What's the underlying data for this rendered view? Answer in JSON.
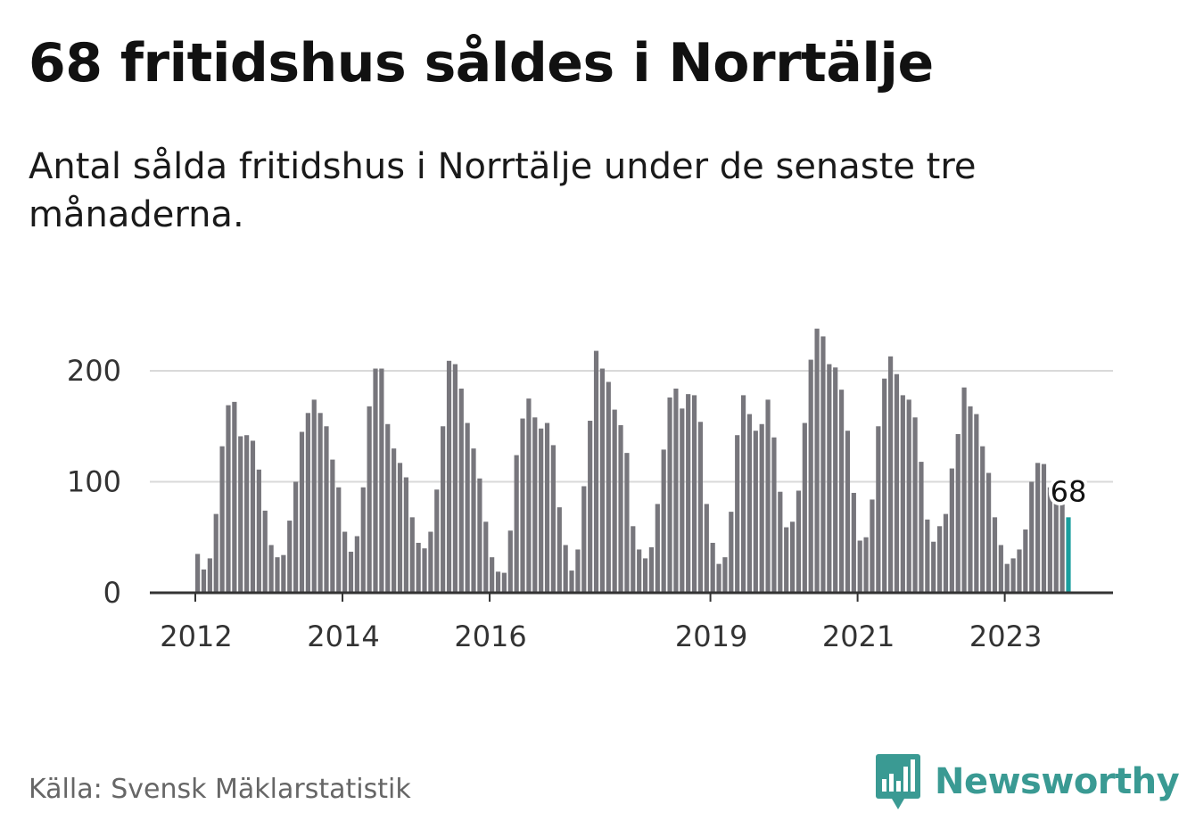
{
  "title": "68 fritidshus såldes i Norrtälje",
  "subtitle": "Antal sålda fritidshus i Norrtälje under de senaste tre månaderna.",
  "source": "Källa: Svensk Mäklarstatistik",
  "brand": {
    "name": "Newsworthy",
    "icon": "newsworthy-logo-icon",
    "color": "#3a9a93"
  },
  "colors": {
    "bar": "#77767c",
    "highlight": "#1a9e9e",
    "grid": "#d9d9d9",
    "axis": "#333333"
  },
  "chart_data": {
    "type": "bar",
    "y_ticks": [
      "0",
      "100",
      "200"
    ],
    "ylim": [
      0,
      250
    ],
    "grid": true,
    "x_tick_labels": [
      "2012",
      "2014",
      "2016",
      "2019",
      "2021",
      "2023"
    ],
    "highlight_label": "68",
    "start": "2012-01",
    "values": [
      35,
      21,
      31,
      71,
      132,
      169,
      172,
      141,
      142,
      137,
      111,
      74,
      43,
      32,
      34,
      65,
      100,
      145,
      162,
      174,
      162,
      150,
      120,
      95,
      55,
      37,
      51,
      95,
      168,
      202,
      202,
      152,
      130,
      117,
      104,
      68,
      45,
      40,
      55,
      93,
      150,
      209,
      206,
      184,
      153,
      130,
      103,
      64,
      32,
      19,
      18,
      56,
      124,
      157,
      175,
      158,
      148,
      153,
      133,
      77,
      43,
      20,
      39,
      96,
      155,
      218,
      202,
      190,
      165,
      151,
      126,
      60,
      39,
      31,
      41,
      80,
      129,
      176,
      184,
      166,
      179,
      178,
      154,
      80,
      45,
      26,
      32,
      73,
      142,
      178,
      161,
      146,
      152,
      174,
      140,
      91,
      59,
      64,
      92,
      153,
      210,
      238,
      231,
      206,
      203,
      183,
      146,
      90,
      47,
      50,
      84,
      150,
      193,
      213,
      197,
      178,
      174,
      158,
      118,
      66,
      46,
      60,
      71,
      112,
      143,
      185,
      168,
      161,
      132,
      108,
      68,
      43,
      26,
      31,
      39,
      57,
      100,
      117,
      116,
      95,
      85,
      80,
      68
    ]
  }
}
